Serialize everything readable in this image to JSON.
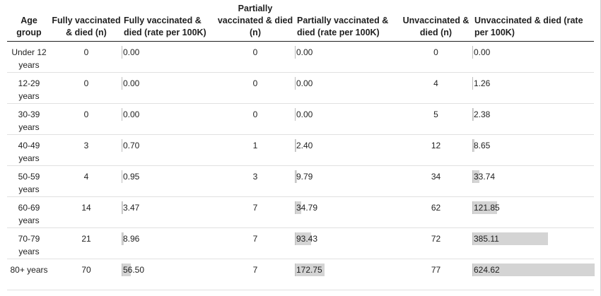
{
  "columns": {
    "age": "Age group",
    "fully_n": "Fully vaccinated & died (n)",
    "fully_rate": "Fully vaccinated & died (rate per 100K)",
    "partial_n": "Partially vaccinated & died (n)",
    "partial_rate": "Partially vaccinated & died (rate per 100K)",
    "unvax_n": "Unvaccinated & died (n)",
    "unvax_rate": "Unvaccinated & died (rate per 100K)"
  },
  "bar_max_rate": 624.62,
  "bar_color": "#d4d4d4",
  "rows": [
    {
      "age": "Under 12 years",
      "fully_n": "0",
      "fully_rate": "0.00",
      "partial_n": "0",
      "partial_rate": "0.00",
      "unvax_n": "0",
      "unvax_rate": "0.00"
    },
    {
      "age": "12-29 years",
      "fully_n": "0",
      "fully_rate": "0.00",
      "partial_n": "0",
      "partial_rate": "0.00",
      "unvax_n": "4",
      "unvax_rate": "1.26"
    },
    {
      "age": "30-39 years",
      "fully_n": "0",
      "fully_rate": "0.00",
      "partial_n": "0",
      "partial_rate": "0.00",
      "unvax_n": "5",
      "unvax_rate": "2.38"
    },
    {
      "age": "40-49 years",
      "fully_n": "3",
      "fully_rate": "0.70",
      "partial_n": "1",
      "partial_rate": "2.40",
      "unvax_n": "12",
      "unvax_rate": "8.65"
    },
    {
      "age": "50-59 years",
      "fully_n": "4",
      "fully_rate": "0.95",
      "partial_n": "3",
      "partial_rate": "9.79",
      "unvax_n": "34",
      "unvax_rate": "33.74"
    },
    {
      "age": "60-69 years",
      "fully_n": "14",
      "fully_rate": "3.47",
      "partial_n": "7",
      "partial_rate": "34.79",
      "unvax_n": "62",
      "unvax_rate": "121.85"
    },
    {
      "age": "70-79 years",
      "fully_n": "21",
      "fully_rate": "8.96",
      "partial_n": "7",
      "partial_rate": "93.43",
      "unvax_n": "72",
      "unvax_rate": "385.11"
    },
    {
      "age": "80+ years",
      "fully_n": "70",
      "fully_rate": "56.50",
      "partial_n": "7",
      "partial_rate": "172.75",
      "unvax_n": "77",
      "unvax_rate": "624.62"
    }
  ]
}
